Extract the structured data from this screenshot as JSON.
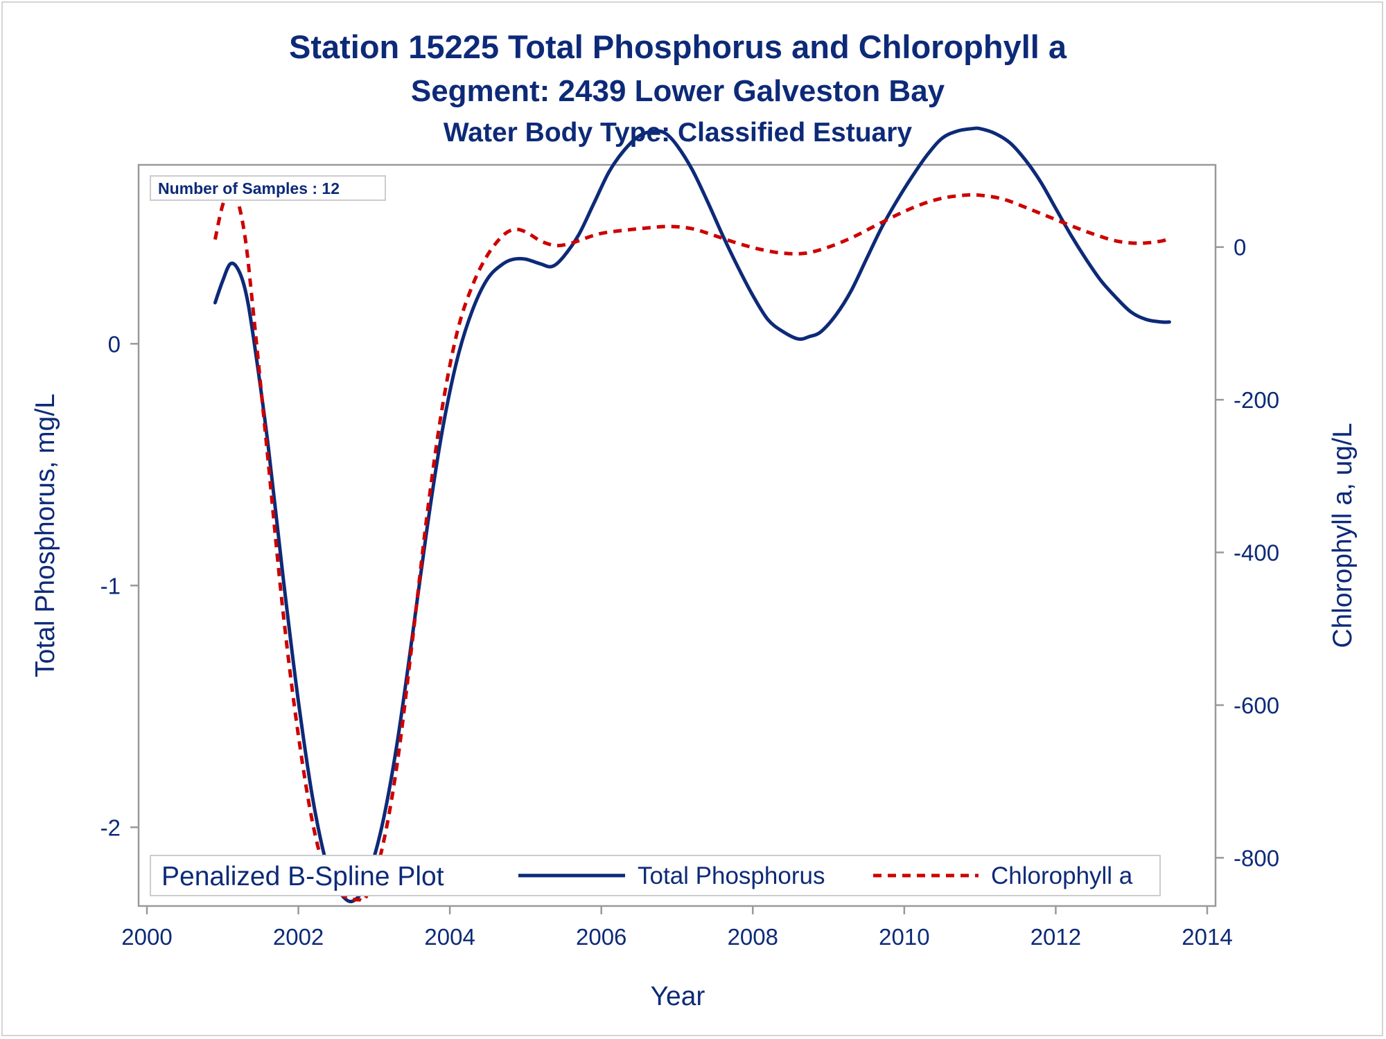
{
  "titles": {
    "line1": "Station 15225  Total Phosphorus and Chlorophyll a",
    "line2": "Segment: 2439  Lower Galveston Bay",
    "line3": "Water Body Type: Classified Estuary"
  },
  "inset_label": "Number of Samples : 12",
  "legend": {
    "title": "Penalized B-Spline Plot",
    "items": [
      {
        "label": "Total Phosphorus",
        "color": "#0d2a78",
        "style": "solid"
      },
      {
        "label": "Chlorophyll a",
        "color": "#cc0000",
        "style": "dashed"
      }
    ]
  },
  "chart_data": {
    "type": "line",
    "xlabel": "Year",
    "ylabel_left": "Total Phosphorus, mg/L",
    "ylabel_right": "Chlorophyll a, ug/L",
    "xlim": [
      2000,
      2014
    ],
    "ylim_left": [
      -2.3,
      0.7
    ],
    "ylim_right": [
      -855,
      95
    ],
    "x_ticks": [
      2000,
      2002,
      2004,
      2006,
      2008,
      2010,
      2012,
      2014
    ],
    "y_left_ticks": [
      0,
      -1,
      -2
    ],
    "y_right_ticks": [
      0,
      -200,
      -400,
      -600,
      -800
    ],
    "grid": false,
    "legend_position": "bottom-inside",
    "series": [
      {
        "name": "Total Phosphorus",
        "axis": "left",
        "color": "#0d2a78",
        "x": [
          2000.9,
          2001.0,
          2001.1,
          2001.2,
          2001.3,
          2001.4,
          2001.6,
          2001.8,
          2002.0,
          2002.2,
          2002.4,
          2002.6,
          2002.75,
          2002.9,
          2003.1,
          2003.3,
          2003.5,
          2003.7,
          2003.9,
          2004.1,
          2004.3,
          2004.5,
          2004.7,
          2004.85,
          2005.0,
          2005.2,
          2005.35,
          2005.5,
          2005.7,
          2005.9,
          2006.1,
          2006.3,
          2006.5,
          2006.7,
          2006.85,
          2007.0,
          2007.2,
          2007.4,
          2007.6,
          2007.8,
          2008.0,
          2008.2,
          2008.4,
          2008.6,
          2008.75,
          2008.9,
          2009.1,
          2009.3,
          2009.5,
          2009.7,
          2009.9,
          2010.1,
          2010.3,
          2010.5,
          2010.7,
          2010.9,
          2011.0,
          2011.2,
          2011.4,
          2011.6,
          2011.8,
          2012.0,
          2012.2,
          2012.4,
          2012.6,
          2012.8,
          2013.0,
          2013.2,
          2013.4,
          2013.5
        ],
        "y": [
          0.17,
          0.26,
          0.33,
          0.31,
          0.22,
          0.04,
          -0.42,
          -0.97,
          -1.48,
          -1.9,
          -2.18,
          -2.29,
          -2.3,
          -2.22,
          -2.0,
          -1.66,
          -1.22,
          -0.76,
          -0.36,
          -0.06,
          0.14,
          0.27,
          0.33,
          0.35,
          0.35,
          0.33,
          0.32,
          0.36,
          0.45,
          0.58,
          0.71,
          0.8,
          0.86,
          0.88,
          0.87,
          0.82,
          0.72,
          0.59,
          0.45,
          0.32,
          0.2,
          0.1,
          0.05,
          0.02,
          0.03,
          0.05,
          0.12,
          0.22,
          0.35,
          0.48,
          0.59,
          0.69,
          0.78,
          0.85,
          0.88,
          0.89,
          0.89,
          0.87,
          0.83,
          0.76,
          0.67,
          0.56,
          0.45,
          0.35,
          0.26,
          0.19,
          0.13,
          0.1,
          0.09,
          0.09
        ]
      },
      {
        "name": "Chlorophyll a",
        "axis": "right",
        "color": "#cc0000",
        "x": [
          2000.9,
          2001.0,
          2001.1,
          2001.2,
          2001.3,
          2001.4,
          2001.6,
          2001.8,
          2002.0,
          2002.2,
          2002.4,
          2002.6,
          2002.8,
          2002.9,
          2003.1,
          2003.3,
          2003.5,
          2003.7,
          2003.9,
          2004.1,
          2004.3,
          2004.5,
          2004.7,
          2004.85,
          2005.0,
          2005.2,
          2005.4,
          2005.6,
          2005.8,
          2006.0,
          2006.3,
          2006.6,
          2006.9,
          2007.2,
          2007.5,
          2007.8,
          2008.1,
          2008.4,
          2008.7,
          2009.0,
          2009.3,
          2009.6,
          2009.9,
          2010.2,
          2010.5,
          2010.8,
          2011.0,
          2011.3,
          2011.6,
          2011.9,
          2012.2,
          2012.5,
          2012.8,
          2013.1,
          2013.4,
          2013.5
        ],
        "y": [
          10,
          55,
          75,
          60,
          10,
          -80,
          -280,
          -480,
          -640,
          -760,
          -830,
          -850,
          -855,
          -850,
          -790,
          -680,
          -520,
          -350,
          -210,
          -110,
          -50,
          -10,
          15,
          23,
          20,
          8,
          2,
          5,
          12,
          18,
          22,
          25,
          27,
          24,
          15,
          5,
          -3,
          -8,
          -8,
          0,
          12,
          27,
          42,
          55,
          64,
          68,
          68,
          63,
          52,
          40,
          28,
          17,
          8,
          5,
          8,
          12
        ]
      }
    ]
  }
}
